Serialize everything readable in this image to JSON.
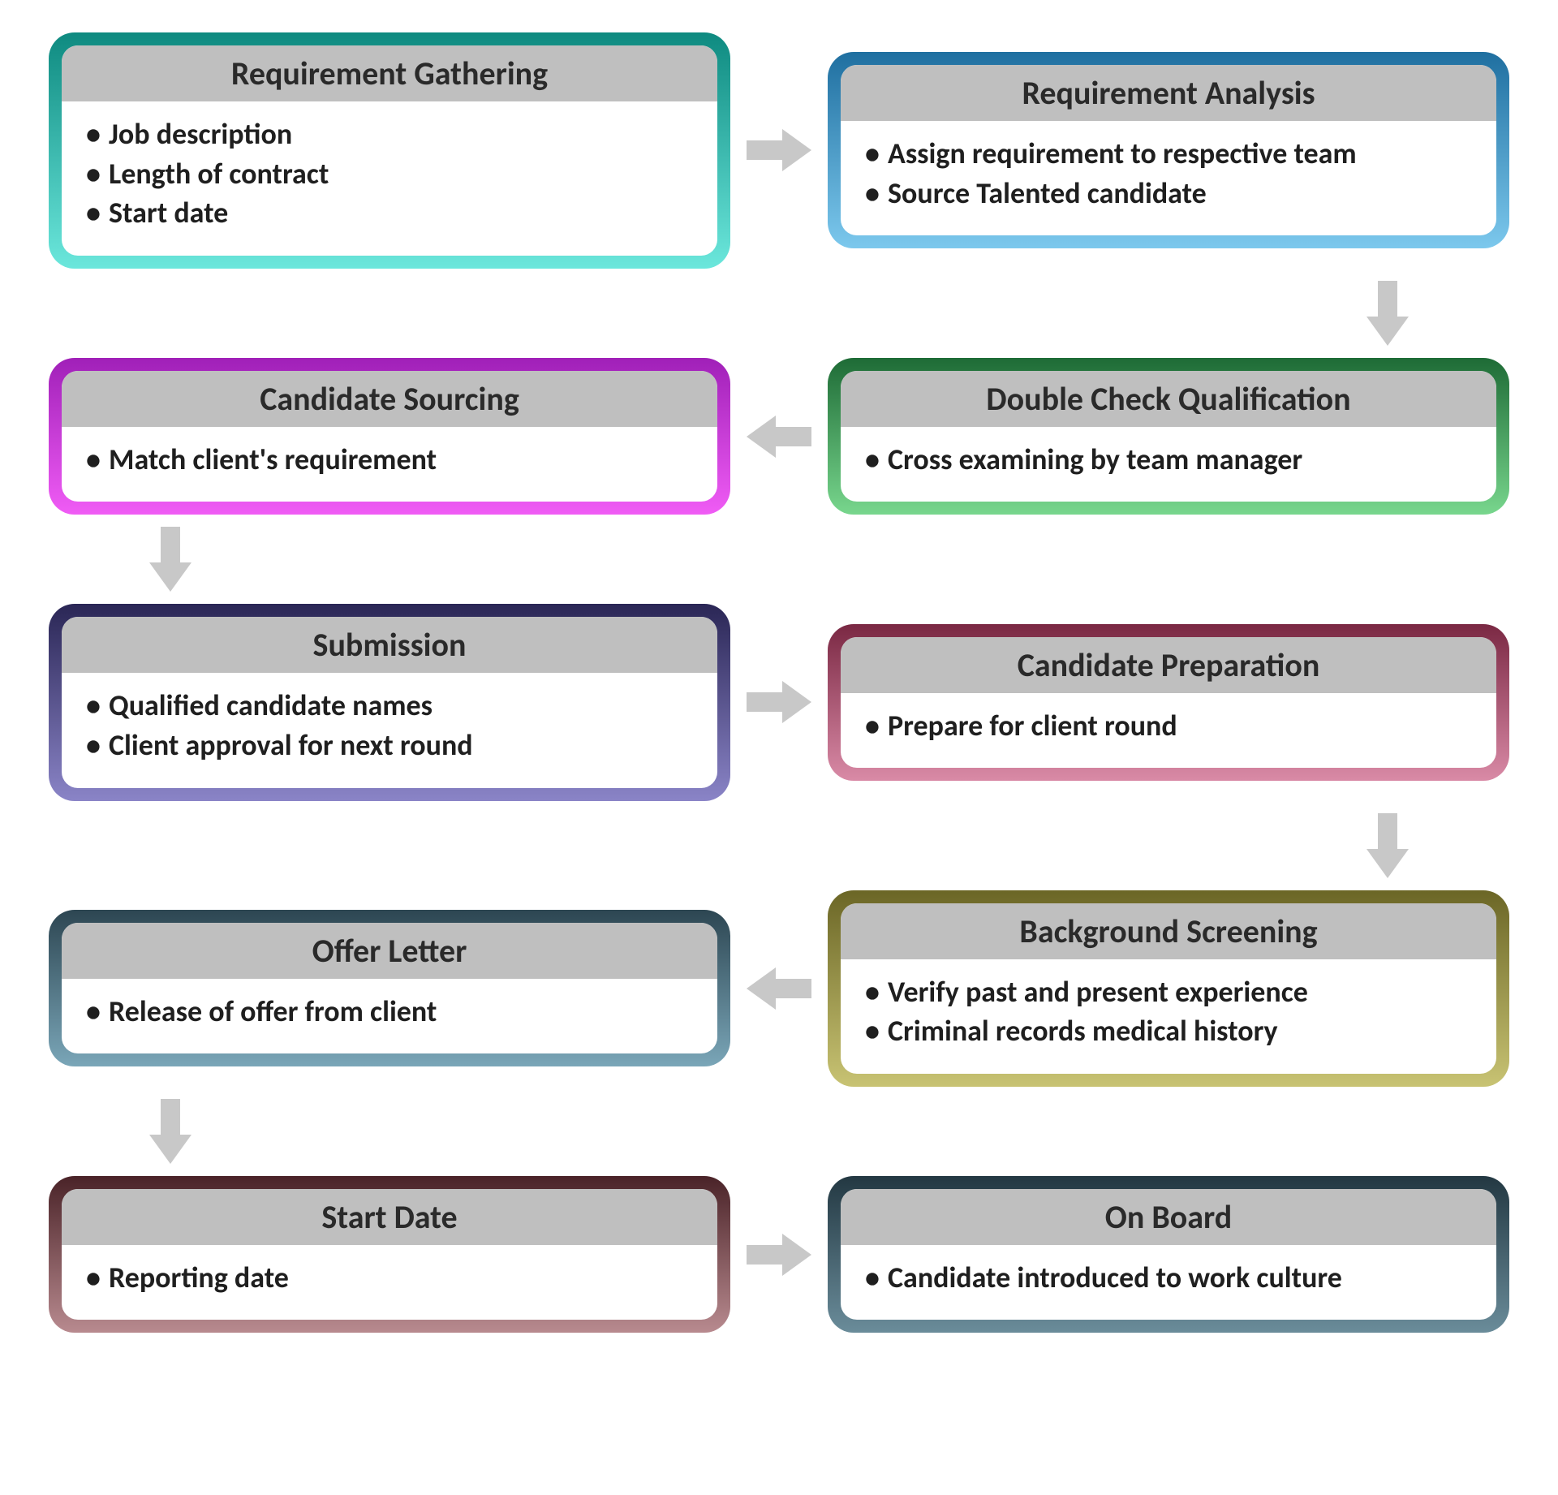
{
  "type": "flowchart",
  "layout": "snake-2col-5row",
  "background_color": "#ffffff",
  "arrow_color": "#c8c8c8",
  "title_bar_color": "#bfbfbf",
  "title_text_color": "#2a2a2a",
  "body_text_color": "#1f1f1f",
  "title_fontsize": 40,
  "body_fontsize": 36,
  "card_border_radius": 32,
  "card_padding": 16,
  "nodes": [
    {
      "id": "req-gathering",
      "title": "Requirement Gathering",
      "items": [
        "Job description",
        "Length of contract",
        "Start date"
      ],
      "grad_top": "#0e8a80",
      "grad_bottom": "#6be7dc",
      "row": 1,
      "col": "left"
    },
    {
      "id": "req-analysis",
      "title": "Requirement Analysis",
      "items": [
        "Assign requirement to respective team",
        "Source Talented candidate"
      ],
      "grad_top": "#1f6fa0",
      "grad_bottom": "#7cc8ed",
      "row": 1,
      "col": "right"
    },
    {
      "id": "double-check",
      "title": "Double Check Qualification",
      "items": [
        "Cross examining by team manager"
      ],
      "grad_top": "#1e6b36",
      "grad_bottom": "#78d68d",
      "row": 2,
      "col": "right"
    },
    {
      "id": "candidate-sourcing",
      "title": "Candidate Sourcing",
      "items": [
        "Match client's requirement"
      ],
      "grad_top": "#a020b8",
      "grad_bottom": "#f05cf5",
      "row": 2,
      "col": "left"
    },
    {
      "id": "submission",
      "title": "Submission",
      "items": [
        "Qualified candidate names",
        "Client approval for next round"
      ],
      "grad_top": "#2a2655",
      "grad_bottom": "#8a84c7",
      "row": 3,
      "col": "left"
    },
    {
      "id": "candidate-prep",
      "title": "Candidate Preparation",
      "items": [
        "Prepare for client round"
      ],
      "grad_top": "#7a2843",
      "grad_bottom": "#d98aa6",
      "row": 3,
      "col": "right"
    },
    {
      "id": "background-screening",
      "title": "Background Screening",
      "items": [
        "Verify past and present experience",
        "Criminal records medical history"
      ],
      "grad_top": "#6b6626",
      "grad_bottom": "#c8c373",
      "row": 4,
      "col": "right"
    },
    {
      "id": "offer-letter",
      "title": "Offer Letter",
      "items": [
        "Release of offer from client"
      ],
      "grad_top": "#2d4652",
      "grad_bottom": "#7aa6b8",
      "row": 4,
      "col": "left"
    },
    {
      "id": "start-date",
      "title": "Start Date",
      "items": [
        "Reporting date"
      ],
      "grad_top": "#4a2328",
      "grad_bottom": "#b88a8f",
      "row": 5,
      "col": "left"
    },
    {
      "id": "on-board",
      "title": "On Board",
      "items": [
        "Candidate introduced to work culture"
      ],
      "grad_top": "#233842",
      "grad_bottom": "#6a8c9a",
      "row": 5,
      "col": "right"
    }
  ],
  "edges": [
    {
      "from": "req-gathering",
      "to": "req-analysis",
      "dir": "right",
      "row": 1
    },
    {
      "from": "req-analysis",
      "to": "double-check",
      "dir": "down",
      "col": "right",
      "between": [
        1,
        2
      ]
    },
    {
      "from": "double-check",
      "to": "candidate-sourcing",
      "dir": "left",
      "row": 2
    },
    {
      "from": "candidate-sourcing",
      "to": "submission",
      "dir": "down",
      "col": "left",
      "between": [
        2,
        3
      ]
    },
    {
      "from": "submission",
      "to": "candidate-prep",
      "dir": "right",
      "row": 3
    },
    {
      "from": "candidate-prep",
      "to": "background-screening",
      "dir": "down",
      "col": "right",
      "between": [
        3,
        4
      ]
    },
    {
      "from": "background-screening",
      "to": "offer-letter",
      "dir": "left",
      "row": 4
    },
    {
      "from": "offer-letter",
      "to": "start-date",
      "dir": "down",
      "col": "left",
      "between": [
        4,
        5
      ]
    },
    {
      "from": "start-date",
      "to": "on-board",
      "dir": "right",
      "row": 5
    }
  ]
}
